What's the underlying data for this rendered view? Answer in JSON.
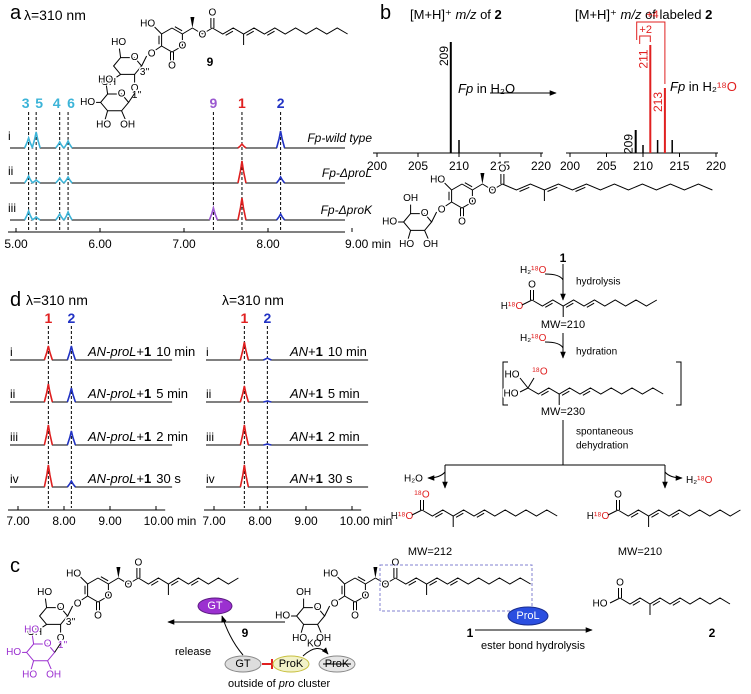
{
  "panel_a": {
    "label": "a",
    "detector": "λ=310 nm",
    "compound": "9",
    "atoms": [
      "HO",
      "O",
      "O",
      "O",
      "O",
      "O",
      "O",
      "HO",
      "OH",
      "3''",
      "O",
      "O",
      "HO",
      "HO",
      "HO",
      "OH",
      "1''"
    ],
    "peaks": [
      "3",
      "5",
      "4",
      "6",
      "9",
      "1",
      "2"
    ],
    "peak_colors": [
      "#3cb4d8",
      "#3cb4d8",
      "#3cb4d8",
      "#3cb4d8",
      "#9b59d0",
      "#e02020",
      "#2233c4"
    ],
    "rows": [
      {
        "index": "i",
        "sample": "Fp-wild type"
      },
      {
        "index": "ii",
        "sample": "Fp-ΔproL"
      },
      {
        "index": "iii",
        "sample": "Fp-ΔproK"
      }
    ],
    "xticks": [
      "5.00",
      "6.00",
      "7.00",
      "8.00",
      "9.00 min"
    ]
  },
  "panel_b": {
    "label": "b",
    "headers": [
      [
        "[M+H]⁺ ",
        "m/z",
        " of ",
        "2"
      ],
      [
        "[M+H]⁺ ",
        "m/z",
        " of labeled ",
        "2"
      ]
    ],
    "spectra": [
      {
        "condition": [
          "Fp",
          " in H₂O"
        ],
        "xticks": [
          200,
          205,
          210,
          215,
          220
        ],
        "peaks": [
          "209"
        ]
      },
      {
        "condition": [
          "Fp",
          " in H₂",
          "¹⁸O"
        ],
        "xticks": [
          200,
          205,
          210,
          215,
          220
        ],
        "peaks": [
          "209",
          "211",
          "213"
        ]
      }
    ],
    "shifts": [
      "+2",
      "+4"
    ],
    "scheme": {
      "compound": "1",
      "atoms_1": [
        "HO",
        "O",
        "O",
        "O",
        "O",
        "O",
        "O",
        "OH",
        "HO",
        "HO",
        "OH"
      ],
      "reagent_1": [
        "H₂",
        "¹⁸O"
      ],
      "step_1": "hydrolysis",
      "acid_atoms": [
        [
          "H",
          "¹⁸O"
        ],
        "O"
      ],
      "mw_1": "MW=210",
      "reagent_2": [
        "H₂",
        "¹⁸O"
      ],
      "step_2": "hydration",
      "hydrate_atoms": [
        "HO",
        "¹⁸O",
        "HO"
      ],
      "mw_2": "MW=230",
      "step_3": [
        "spontaneous",
        "dehydration"
      ],
      "loss_left": "H₂O",
      "loss_right": [
        "H₂",
        "¹⁸O"
      ],
      "product_left_atoms": [
        [
          "H",
          "¹⁸O"
        ],
        "¹⁸O"
      ],
      "mw_left": "MW=212",
      "product_right_atoms": [
        [
          "H",
          "¹⁸O"
        ],
        "O"
      ],
      "mw_right": "MW=210"
    }
  },
  "panel_c": {
    "label": "c",
    "compounds": [
      "9",
      "1",
      "2"
    ],
    "atoms_9": [
      "HO",
      "O",
      "O",
      "O",
      "O",
      "O",
      "O",
      "HO",
      "OH",
      "3''",
      "O",
      "O",
      "HO",
      "HO",
      "HO",
      "OH",
      "1''"
    ],
    "atoms_1": [
      "HO",
      "O",
      "O",
      "O",
      "O",
      "O",
      "O",
      "OH",
      "HO",
      "HO",
      "OH"
    ],
    "atoms_2": [
      "HO",
      "O"
    ],
    "gt_active": "GT",
    "release": "release",
    "gt": "GT",
    "prok": "ProK",
    "ko": "KO",
    "prok_ko": "ProK",
    "location": [
      "outside of ",
      "pro",
      " cluster"
    ],
    "prol": "ProL",
    "reaction": "ester bond hydrolysis"
  },
  "panel_d": {
    "label": "d",
    "peak_colors": [
      "#e02020",
      "#2233c4"
    ],
    "traces": [
      {
        "detector": "λ=310 nm",
        "peaks": [
          "1",
          "2"
        ],
        "xticks": [
          "7.00",
          "8.00",
          "9.00",
          "10.00 min"
        ],
        "rows": [
          {
            "index": "i",
            "sample": "AN-proL",
            "plus": "+",
            "compound": "1",
            "time": "10 min"
          },
          {
            "index": "ii",
            "sample": "AN-proL",
            "plus": "+",
            "compound": "1",
            "time": "5 min"
          },
          {
            "index": "iii",
            "sample": "AN-proL",
            "plus": "+",
            "compound": "1",
            "time": "2 min"
          },
          {
            "index": "iv",
            "sample": "AN-proL",
            "plus": "+",
            "compound": "1",
            "time": "30 s"
          }
        ]
      },
      {
        "detector": "λ=310 nm",
        "peaks": [
          "1",
          "2"
        ],
        "xticks": [
          "7.00",
          "8.00",
          "9.00",
          "10.00 min"
        ],
        "rows": [
          {
            "index": "i",
            "sample": "AN",
            "plus": "+",
            "compound": "1",
            "time": "10 min"
          },
          {
            "index": "ii",
            "sample": "AN",
            "plus": "+",
            "compound": "1",
            "time": "5 min"
          },
          {
            "index": "iii",
            "sample": "AN",
            "plus": "+",
            "compound": "1",
            "time": "2 min"
          },
          {
            "index": "iv",
            "sample": "AN",
            "plus": "+",
            "compound": "1",
            "time": "30 s"
          }
        ]
      }
    ]
  }
}
